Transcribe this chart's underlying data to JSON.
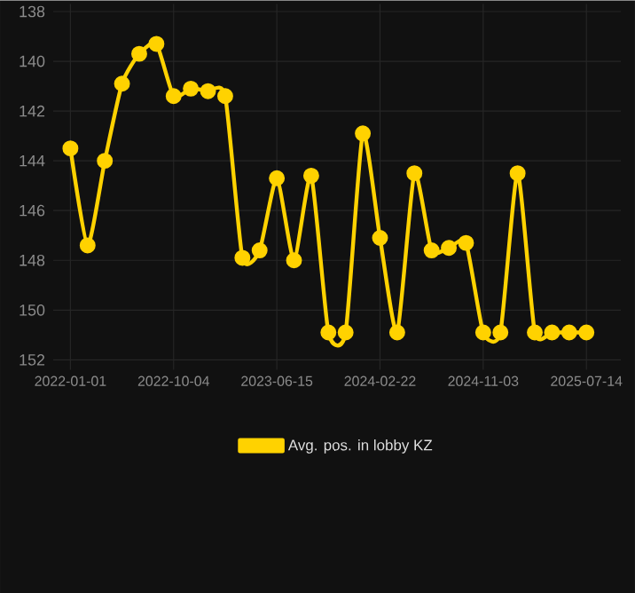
{
  "chart_data": {
    "type": "line",
    "categories": [
      "2022-01-01",
      null,
      null,
      null,
      null,
      null,
      "2022-10-04",
      null,
      null,
      null,
      null,
      null,
      "2023-06-15",
      null,
      null,
      null,
      null,
      null,
      "2024-02-22",
      null,
      null,
      null,
      null,
      null,
      "2024-11-03",
      null,
      null,
      null,
      null,
      null,
      "2025-07-14"
    ],
    "series": [
      {
        "name": "Avg. pos. in lobby KZ",
        "color": "#ffd200",
        "values": [
          143.5,
          147.4,
          144.0,
          140.9,
          139.7,
          139.3,
          141.4,
          141.1,
          141.2,
          141.4,
          147.9,
          147.6,
          144.7,
          148.0,
          144.6,
          150.9,
          150.9,
          142.9,
          147.1,
          150.9,
          144.5,
          147.6,
          147.5,
          147.3,
          150.9,
          150.9,
          144.5,
          150.9,
          150.9,
          150.9,
          150.9
        ]
      }
    ],
    "ylim": [
      152.4,
      137.7
    ],
    "yticks": [
      138,
      140,
      142,
      144,
      146,
      148,
      150,
      152
    ],
    "grid": true,
    "legend": "bottom",
    "marker": "circle",
    "line_style": "solid"
  }
}
